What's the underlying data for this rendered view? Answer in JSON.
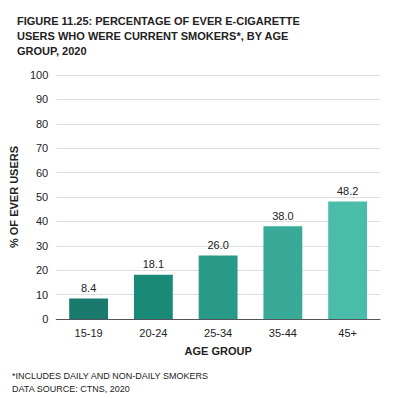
{
  "chart_data": {
    "type": "bar",
    "title": "FIGURE 11.25: PERCENTAGE OF EVER E-CIGARETTE\nUSERS WHO WERE CURRENT SMOKERS*, BY AGE\nGROUP, 2020",
    "categories": [
      "15-19",
      "20-24",
      "25-34",
      "35-44",
      "45+"
    ],
    "values": [
      8.4,
      18.1,
      26.0,
      38.0,
      48.2
    ],
    "value_labels": [
      "8.4",
      "18.1",
      "26.0",
      "38.0",
      "48.2"
    ],
    "data_labels": true,
    "colors": [
      "#1a7a6e",
      "#1a8a78",
      "#2a9a88",
      "#3aaa98",
      "#4abcaa"
    ],
    "xlabel": "AGE GROUP",
    "ylabel": "% OF EVER USERS",
    "ylim": [
      0,
      100
    ],
    "yticks": [
      0,
      10,
      20,
      30,
      40,
      50,
      60,
      70,
      80,
      90,
      100
    ],
    "grid": true,
    "annotations": [
      "*INCLUDES DAILY AND NON-DAILY SMOKERS",
      "DATA SOURCE: CTNS, 2020"
    ]
  }
}
